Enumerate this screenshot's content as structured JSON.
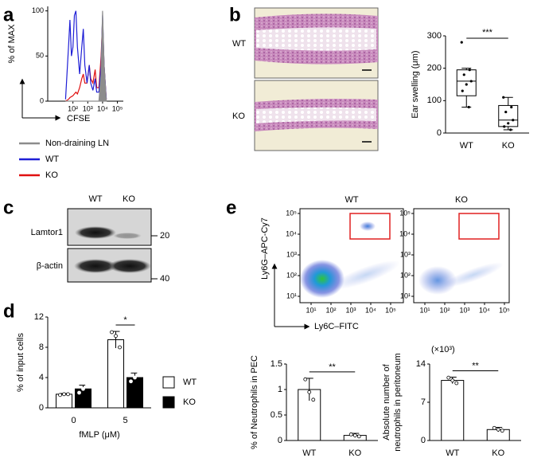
{
  "panel_labels": [
    "a",
    "b",
    "c",
    "d",
    "e"
  ],
  "chart_data": [
    {
      "type": "line",
      "xlabel": "CFSE",
      "ylabel": "% of MAX",
      "xlog": true,
      "x": [
        32,
        50,
        63,
        79,
        100,
        126,
        158,
        200,
        282,
        398,
        501,
        631,
        891,
        1259,
        1585,
        2239,
        3162,
        3981,
        5623,
        7943,
        10000,
        12589,
        17783
      ],
      "xlim": [
        2,
        250000
      ],
      "xticks": [
        {
          "value": 100,
          "label": "10²"
        },
        {
          "value": 1000,
          "label": "10³"
        },
        {
          "value": 10000,
          "label": "10⁴"
        },
        {
          "value": 100000,
          "label": "10⁵"
        }
      ],
      "ylim": [
        0,
        105
      ],
      "yticks": [
        0,
        50,
        100
      ],
      "series": [
        {
          "name": "Non-draining LN",
          "color": "#8c8c8c",
          "filled": true,
          "values": [
            0,
            0,
            0,
            0,
            0,
            0,
            0,
            0,
            0,
            0,
            0,
            0,
            0,
            0,
            0,
            0,
            0,
            0,
            0,
            30,
            100,
            40,
            0
          ]
        },
        {
          "name": "WT",
          "color": "#1f1fd6",
          "values": [
            2,
            60,
            90,
            50,
            60,
            95,
            100,
            60,
            30,
            60,
            80,
            40,
            20,
            40,
            20,
            12,
            25,
            10,
            10,
            40,
            95,
            40,
            2
          ]
        },
        {
          "name": "KO",
          "color": "#e01010",
          "values": [
            0,
            2,
            4,
            5,
            6,
            8,
            10,
            8,
            15,
            25,
            30,
            20,
            20,
            40,
            25,
            20,
            35,
            15,
            15,
            50,
            90,
            40,
            2
          ]
        }
      ]
    },
    {
      "type": "box",
      "ylabel": "Ear swelling (μm)",
      "categories": [
        "WT",
        "KO"
      ],
      "significance": "***",
      "ylim": [
        0,
        300
      ],
      "yticks": [
        0,
        100,
        200,
        300
      ],
      "boxes": [
        {
          "min": 80,
          "q1": 115,
          "median": 160,
          "q3": 195,
          "max": 200,
          "points": [
            280,
            195,
            180,
            160,
            150,
            130,
            80
          ]
        },
        {
          "min": 10,
          "q1": 20,
          "median": 40,
          "q3": 85,
          "max": 110,
          "points": [
            110,
            80,
            65,
            40,
            30,
            20,
            10
          ]
        }
      ]
    },
    {
      "type": "bar",
      "ylabel": "% of input cells",
      "xlabel": "fMLP (μM)",
      "categories": [
        "0",
        "5"
      ],
      "significance": "*",
      "ylim": [
        0,
        12
      ],
      "yticks": [
        0,
        4,
        8,
        12
      ],
      "series": [
        {
          "name": "WT",
          "color": "#ffffff",
          "values": [
            1.8,
            9
          ],
          "errors": [
            0.1,
            1.1
          ],
          "points": [
            [
              1.7,
              1.8,
              1.8
            ],
            [
              10,
              9.5,
              8
            ]
          ]
        },
        {
          "name": "KO",
          "color": "#000000",
          "values": [
            2.5,
            4
          ],
          "errors": [
            0.5,
            0.6
          ],
          "points": [
            [
              2,
              2.5,
              3
            ],
            [
              3.5,
              4,
              4.5
            ]
          ]
        }
      ]
    },
    {
      "type": "bar",
      "ylabel": [
        "% of Neutrophils in PEC"
      ],
      "categories": [
        "WT",
        "KO"
      ],
      "significance": "**",
      "color": "#ffffff",
      "ylim": [
        0,
        1.5
      ],
      "yticks": [
        0,
        0.5,
        1,
        1.5
      ],
      "values": [
        1,
        0.1
      ],
      "errors": [
        0.22,
        0.04
      ],
      "points": [
        [
          1.2,
          0.95,
          0.8
        ],
        [
          0.12,
          0.1,
          0.08
        ]
      ]
    },
    {
      "type": "bar",
      "ylabel": [
        "Absolute number of",
        "neutrophils in peritoneum"
      ],
      "annotation": "(×10³)",
      "categories": [
        "WT",
        "KO"
      ],
      "significance": "**",
      "color": "#ffffff",
      "ylim": [
        0,
        14
      ],
      "yticks": [
        0,
        7,
        14
      ],
      "values": [
        11,
        2
      ],
      "errors": [
        0.6,
        0.4
      ],
      "points": [
        [
          11.5,
          11,
          10.5
        ],
        [
          2.3,
          2,
          1.8
        ]
      ]
    }
  ],
  "histology": {
    "labels": [
      "WT",
      "KO"
    ]
  },
  "blot": {
    "lanes": [
      "WT",
      "KO"
    ],
    "proteins": [
      "Lamtor1",
      "β-actin"
    ],
    "markers": [
      "20",
      "40"
    ]
  },
  "flow": {
    "titles": [
      "WT",
      "KO"
    ],
    "ylabel": "Ly6G–APC-Cy7",
    "xlabel": "Ly6C–FITC",
    "ticks": [
      {
        "value": 10,
        "label": "10¹"
      },
      {
        "value": 100,
        "label": "10²"
      },
      {
        "value": 1000,
        "label": "10³"
      },
      {
        "value": 10000,
        "label": "10⁴"
      },
      {
        "value": 100000,
        "label": "10⁵"
      }
    ]
  }
}
